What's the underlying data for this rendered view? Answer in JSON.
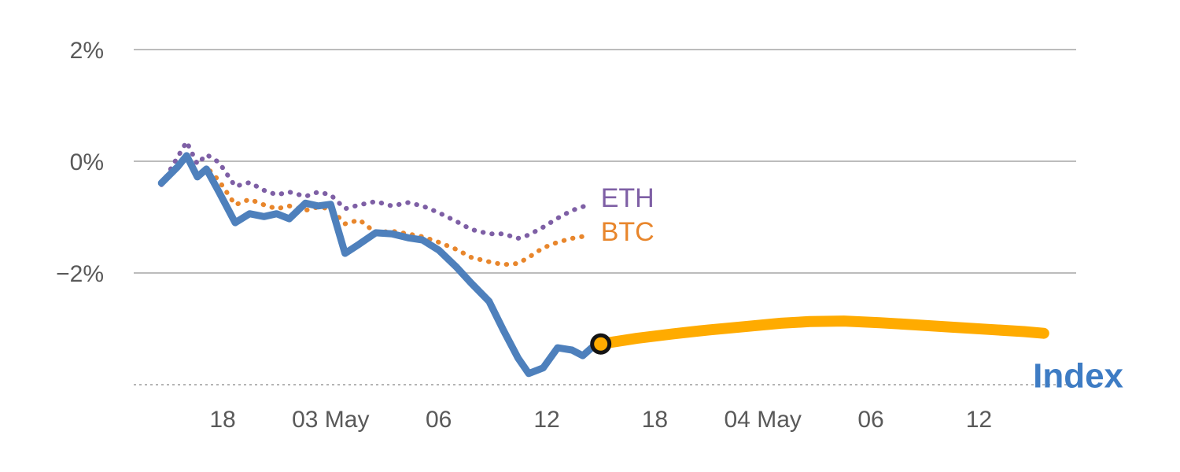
{
  "chart_data": {
    "type": "line",
    "title": "",
    "description": "Two-day crypto performance chart: ETH and BTC dotted history lines, solid blue Index line turning into a thick orange projection after the current-time marker.",
    "colors": {
      "grid": "#a6a6a6",
      "axis_text": "#595959",
      "baseline": "#9b9b9b",
      "eth": "#7e5fa5",
      "btc": "#e8862c",
      "index": "#4e80bc",
      "projection": "#ffab00",
      "index_label": "#3e7cc4"
    },
    "y_axis": {
      "unit": "%",
      "ticks": [
        {
          "value": 2,
          "label": "2%"
        },
        {
          "value": 0,
          "label": "0%"
        },
        {
          "value": -2,
          "label": "−2%"
        }
      ],
      "baseline": {
        "value": -4,
        "style": "dashed"
      }
    },
    "x_axis": {
      "unit": "hours-since-02-May-12:00",
      "range": [
        1.85,
        53.4
      ],
      "ticks": [
        {
          "value": 6,
          "label": "18"
        },
        {
          "value": 12,
          "label": "03 May"
        },
        {
          "value": 18,
          "label": "06"
        },
        {
          "value": 24,
          "label": "12"
        },
        {
          "value": 30,
          "label": "18"
        },
        {
          "value": 36,
          "label": "04 May"
        },
        {
          "value": 42,
          "label": "06"
        },
        {
          "value": 48,
          "label": "12"
        }
      ]
    },
    "series": [
      {
        "id": "eth",
        "name": "ETH",
        "color": "#7e5fa5",
        "style": "dotted",
        "width": 6,
        "points": [
          [
            2.6,
            -0.42
          ],
          [
            4.0,
            0.35
          ],
          [
            4.6,
            -0.05
          ],
          [
            5.1,
            0.12
          ],
          [
            5.8,
            -0.02
          ],
          [
            6.7,
            -0.45
          ],
          [
            7.5,
            -0.38
          ],
          [
            8.3,
            -0.52
          ],
          [
            9.0,
            -0.6
          ],
          [
            9.7,
            -0.55
          ],
          [
            10.6,
            -0.63
          ],
          [
            11.3,
            -0.55
          ],
          [
            12.0,
            -0.6
          ],
          [
            12.8,
            -0.85
          ],
          [
            13.6,
            -0.78
          ],
          [
            14.5,
            -0.72
          ],
          [
            15.4,
            -0.8
          ],
          [
            16.3,
            -0.74
          ],
          [
            17.1,
            -0.8
          ],
          [
            18.0,
            -0.92
          ],
          [
            19.0,
            -1.08
          ],
          [
            19.8,
            -1.22
          ],
          [
            20.8,
            -1.3
          ],
          [
            21.6,
            -1.3
          ],
          [
            22.4,
            -1.38
          ],
          [
            23.0,
            -1.32
          ],
          [
            23.8,
            -1.18
          ],
          [
            24.6,
            -1.02
          ],
          [
            25.4,
            -0.88
          ],
          [
            26.3,
            -0.78
          ]
        ]
      },
      {
        "id": "btc",
        "name": "BTC",
        "color": "#e8862c",
        "style": "dotted",
        "width": 6,
        "points": [
          [
            2.6,
            -0.38
          ],
          [
            4.0,
            0.1
          ],
          [
            4.6,
            -0.3
          ],
          [
            5.1,
            -0.1
          ],
          [
            5.8,
            -0.35
          ],
          [
            6.7,
            -0.78
          ],
          [
            7.5,
            -0.68
          ],
          [
            8.3,
            -0.78
          ],
          [
            9.0,
            -0.85
          ],
          [
            9.7,
            -0.8
          ],
          [
            10.6,
            -0.88
          ],
          [
            11.3,
            -0.82
          ],
          [
            12.0,
            -0.85
          ],
          [
            12.8,
            -1.12
          ],
          [
            13.6,
            -1.05
          ],
          [
            14.5,
            -1.28
          ],
          [
            15.4,
            -1.25
          ],
          [
            16.3,
            -1.3
          ],
          [
            17.1,
            -1.35
          ],
          [
            18.0,
            -1.45
          ],
          [
            19.0,
            -1.58
          ],
          [
            19.8,
            -1.72
          ],
          [
            20.8,
            -1.8
          ],
          [
            21.6,
            -1.85
          ],
          [
            22.4,
            -1.83
          ],
          [
            23.0,
            -1.72
          ],
          [
            23.8,
            -1.55
          ],
          [
            24.6,
            -1.45
          ],
          [
            25.4,
            -1.38
          ],
          [
            26.3,
            -1.33
          ]
        ]
      },
      {
        "id": "index",
        "name": "Index",
        "color": "#4e80bc",
        "style": "solid",
        "width": 9,
        "points": [
          [
            2.6,
            -0.39
          ],
          [
            3.5,
            -0.1
          ],
          [
            4.0,
            0.1
          ],
          [
            4.6,
            -0.28
          ],
          [
            5.1,
            -0.14
          ],
          [
            5.8,
            -0.55
          ],
          [
            6.7,
            -1.1
          ],
          [
            7.5,
            -0.94
          ],
          [
            8.3,
            -0.99
          ],
          [
            9.0,
            -0.94
          ],
          [
            9.7,
            -1.03
          ],
          [
            10.6,
            -0.75
          ],
          [
            11.3,
            -0.8
          ],
          [
            12.0,
            -0.77
          ],
          [
            12.8,
            -1.65
          ],
          [
            13.6,
            -1.48
          ],
          [
            14.5,
            -1.28
          ],
          [
            15.4,
            -1.3
          ],
          [
            16.3,
            -1.37
          ],
          [
            17.1,
            -1.41
          ],
          [
            18.0,
            -1.59
          ],
          [
            19.0,
            -1.9
          ],
          [
            19.8,
            -2.18
          ],
          [
            20.8,
            -2.51
          ],
          [
            21.6,
            -3.03
          ],
          [
            22.4,
            -3.52
          ],
          [
            23.0,
            -3.8
          ],
          [
            23.8,
            -3.7
          ],
          [
            24.6,
            -3.34
          ],
          [
            25.4,
            -3.38
          ],
          [
            26.0,
            -3.48
          ],
          [
            26.6,
            -3.31
          ],
          [
            27.0,
            -3.27
          ]
        ]
      },
      {
        "id": "index-projection",
        "name": "Index projection",
        "color": "#ffab00",
        "style": "solid",
        "width": 14,
        "points": [
          [
            27.0,
            -3.27
          ],
          [
            29.0,
            -3.17
          ],
          [
            31.0,
            -3.09
          ],
          [
            33.0,
            -3.02
          ],
          [
            35.0,
            -2.96
          ],
          [
            37.0,
            -2.9
          ],
          [
            38.6,
            -2.87
          ],
          [
            40.5,
            -2.86
          ],
          [
            42.5,
            -2.89
          ],
          [
            44.5,
            -2.93
          ],
          [
            46.5,
            -2.97
          ],
          [
            48.5,
            -3.01
          ],
          [
            50.5,
            -3.05
          ],
          [
            51.6,
            -3.08
          ]
        ]
      }
    ],
    "marker": {
      "x": 27.0,
      "y": -3.27,
      "fill": "#ffab00",
      "ring": "#141414"
    },
    "labels": [
      {
        "id": "eth",
        "text": "ETH",
        "x": 27.0,
        "y": -0.82,
        "color": "#7e5fa5",
        "size": 34,
        "bold": false
      },
      {
        "id": "btc",
        "text": "BTC",
        "x": 27.0,
        "y": -1.42,
        "color": "#e8862c",
        "size": 34,
        "bold": false
      },
      {
        "id": "index",
        "text": "Index",
        "x": 51.0,
        "y": -4.05,
        "color": "#3e7cc4",
        "size": 44,
        "bold": true
      }
    ]
  }
}
